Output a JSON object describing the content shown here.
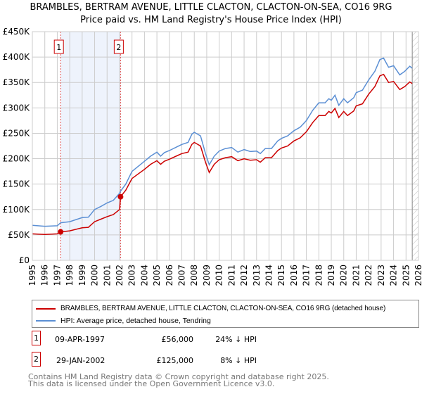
{
  "header": {
    "title": "BRAMBLES, BERTRAM AVENUE, LITTLE CLACTON, CLACTON-ON-SEA, CO16 9RG",
    "subtitle": "Price paid vs. HM Land Registry's House Price Index (HPI)"
  },
  "chart_data": {
    "type": "line",
    "title": "BRAMBLES, BERTRAM AVENUE, LITTLE CLACTON, CLACTON-ON-SEA, CO16 9RG",
    "subtitle": "Price paid vs. HM Land Registry's House Price Index (HPI)",
    "xlim": [
      1995,
      2026
    ],
    "ylim": [
      0,
      450000
    ],
    "grid": true,
    "y_ticks": [
      {
        "v": 0,
        "label": "£0"
      },
      {
        "v": 50000,
        "label": "£50K"
      },
      {
        "v": 100000,
        "label": "£100K"
      },
      {
        "v": 150000,
        "label": "£150K"
      },
      {
        "v": 200000,
        "label": "£200K"
      },
      {
        "v": 250000,
        "label": "£250K"
      },
      {
        "v": 300000,
        "label": "£300K"
      },
      {
        "v": 350000,
        "label": "£350K"
      },
      {
        "v": 400000,
        "label": "£400K"
      },
      {
        "v": 450000,
        "label": "£450K"
      }
    ],
    "x_ticks": [
      "1995",
      "1996",
      "1997",
      "1998",
      "1999",
      "2000",
      "2001",
      "2002",
      "2003",
      "2004",
      "2005",
      "2006",
      "2007",
      "2008",
      "2009",
      "2010",
      "2011",
      "2012",
      "2013",
      "2014",
      "2015",
      "2016",
      "2017",
      "2018",
      "2019",
      "2020",
      "2021",
      "2022",
      "2023",
      "2024",
      "2025",
      "2026"
    ],
    "x": [
      1995,
      1996,
      1997,
      1997.27,
      1998,
      1999,
      1999.5,
      2000,
      2000.5,
      2001,
      2001.5,
      2002,
      2002.08,
      2002.5,
      2003,
      2003.5,
      2004,
      2004.5,
      2005,
      2005.3,
      2005.6,
      2006,
      2007,
      2007.5,
      2007.8,
      2008,
      2008.5,
      2008.9,
      2009.2,
      2009.6,
      2010,
      2010.5,
      2011,
      2011.5,
      2012,
      2012.5,
      2013,
      2013.3,
      2013.7,
      2014.2,
      2014.7,
      2015,
      2015.5,
      2016,
      2016.5,
      2017,
      2017.5,
      2018,
      2018.5,
      2018.8,
      2019,
      2019.3,
      2019.6,
      2020,
      2020.3,
      2020.8,
      2021,
      2021.5,
      2022,
      2022.5,
      2022.9,
      2023.2,
      2023.6,
      2024,
      2024.5,
      2024.9,
      2025.3,
      2025.5
    ],
    "series": [
      {
        "name": "BRAMBLES, BERTRAM AVENUE, LITTLE CLACTON, CLACTON-ON-SEA, CO16 9RG (detached house)",
        "color": "#cc0000",
        "values": [
          52,
          51,
          52,
          56,
          58,
          64,
          65,
          76,
          81,
          86,
          90,
          100,
          125,
          138,
          161,
          170,
          179,
          189,
          196,
          189,
          195,
          199,
          210,
          213,
          228,
          232,
          225,
          193,
          173,
          189,
          198,
          202,
          204,
          196,
          200,
          197,
          198,
          193,
          202,
          202,
          216,
          221,
          225,
          235,
          241,
          253,
          271,
          285,
          285,
          293,
          290,
          299,
          281,
          293,
          285,
          294,
          304,
          308,
          327,
          342,
          363,
          366,
          350,
          352,
          336,
          342,
          351,
          348
        ]
      },
      {
        "name": "HPI: Average price, detached house, Tendring",
        "color": "#5b8fd4",
        "values": [
          69,
          67,
          68,
          74,
          76,
          84,
          85,
          100,
          106,
          113,
          118,
          132,
          136,
          150,
          175,
          185,
          195,
          205,
          213,
          205,
          212,
          216,
          228,
          232,
          248,
          252,
          245,
          210,
          188,
          205,
          215,
          220,
          222,
          213,
          218,
          214,
          215,
          210,
          220,
          220,
          235,
          240,
          245,
          255,
          262,
          275,
          295,
          310,
          310,
          318,
          315,
          325,
          305,
          318,
          310,
          320,
          330,
          335,
          355,
          372,
          395,
          398,
          380,
          383,
          365,
          372,
          382,
          378
        ]
      }
    ],
    "value_unit": "£K",
    "sales": [
      {
        "id": "1",
        "x": 1997.27,
        "value": 56000
      },
      {
        "id": "2",
        "x": 2002.08,
        "value": 125000
      }
    ],
    "shaded_range": [
      1997.27,
      2002.08
    ],
    "hatched_from": 2025.5
  },
  "legend": {
    "items": [
      {
        "label": "BRAMBLES, BERTRAM AVENUE, LITTLE CLACTON, CLACTON-ON-SEA, CO16 9RG (detached house)",
        "color": "#cc0000"
      },
      {
        "label": "HPI: Average price, detached house, Tendring",
        "color": "#5b8fd4"
      }
    ]
  },
  "transactions": [
    {
      "id": "1",
      "date": "09-APR-1997",
      "price": "£56,000",
      "hpi": "24% ↓ HPI"
    },
    {
      "id": "2",
      "date": "29-JAN-2002",
      "price": "£125,000",
      "hpi": "8% ↓ HPI"
    }
  ],
  "footer": {
    "line1": "Contains HM Land Registry data © Crown copyright and database right 2025.",
    "line2": "This data is licensed under the Open Government Licence v3.0."
  }
}
